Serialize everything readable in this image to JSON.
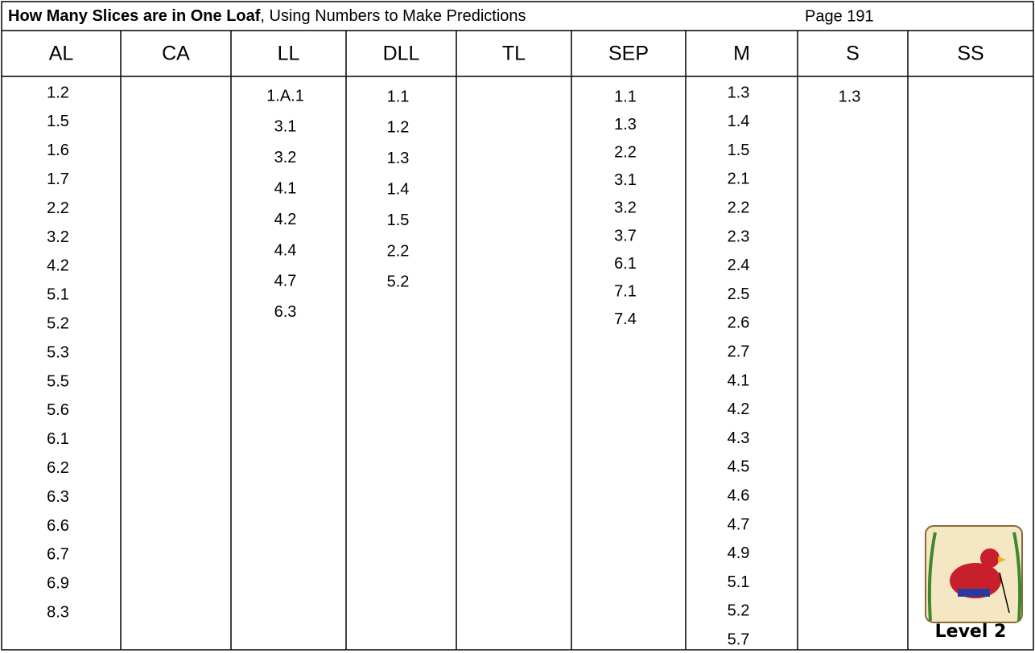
{
  "header": {
    "title_bold": "How Many Slices are in One Loaf",
    "title_rest": ", Using Numbers to Make Predictions",
    "page": "Page 191"
  },
  "table": {
    "columns": [
      {
        "name": "AL",
        "items": [
          "1.2",
          "1.5",
          "1.6",
          "1.7",
          "2.2",
          "3.2",
          "4.2",
          "5.1",
          "5.2",
          "5.3",
          "5.5",
          "5.6",
          "6.1",
          "6.2",
          "6.3",
          "6.6",
          "6.7",
          "6.9",
          "8.3"
        ]
      },
      {
        "name": "CA",
        "items": []
      },
      {
        "name": "LL",
        "items": [
          "1.A.1",
          "3.1",
          "3.2",
          "4.1",
          "4.2",
          "4.4",
          "4.7",
          "6.3"
        ]
      },
      {
        "name": "DLL",
        "items": [
          "1.1",
          "1.2",
          "1.3",
          "1.4",
          "1.5",
          "2.2",
          "5.2"
        ]
      },
      {
        "name": "TL",
        "items": []
      },
      {
        "name": "SEP",
        "items": [
          "1.1",
          "1.3",
          "2.2",
          "3.1",
          "3.2",
          "3.7",
          "6.1",
          "7.1",
          "7.4"
        ]
      },
      {
        "name": "M",
        "items": [
          "1.3",
          "1.4",
          "1.5",
          "2.1",
          "2.2",
          "2.3",
          "2.4",
          "2.5",
          "2.6",
          "2.7",
          "4.1",
          "4.2",
          "4.3",
          "4.5",
          "4.6",
          "4.7",
          "4.9",
          "5.1",
          "5.2",
          "5.7"
        ]
      },
      {
        "name": "S",
        "items": [
          "1.3"
        ]
      },
      {
        "name": "SS",
        "items": []
      }
    ]
  },
  "badge": "Level 2"
}
